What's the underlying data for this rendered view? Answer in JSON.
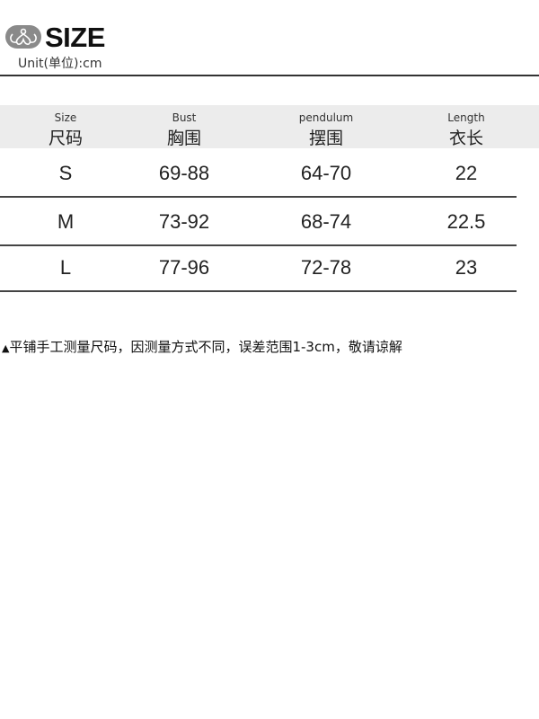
{
  "header": {
    "title": "SIZE",
    "unit": "Unit(单位):cm",
    "logo_icon": "lotus-logo-icon"
  },
  "table": {
    "columns": [
      {
        "en": "Size",
        "cn": "尺码"
      },
      {
        "en": "Bust",
        "cn": "胸围"
      },
      {
        "en": "pendulum",
        "cn": "摆围"
      },
      {
        "en": "Length",
        "cn": "衣长"
      }
    ],
    "rows": [
      [
        "S",
        "69-88",
        "64-70",
        "22"
      ],
      [
        "M",
        "73-92",
        "68-74",
        "22.5"
      ],
      [
        "L",
        "77-96",
        "72-78",
        "23"
      ]
    ]
  },
  "note": {
    "icon": "triangle-up-icon",
    "symbol": "▲",
    "text": "平铺手工测量尺码，因测量方式不同，误差范围1-3cm，敬请谅解"
  },
  "colors": {
    "header_bg": "#ececec",
    "logo": "#8a8a8a"
  }
}
